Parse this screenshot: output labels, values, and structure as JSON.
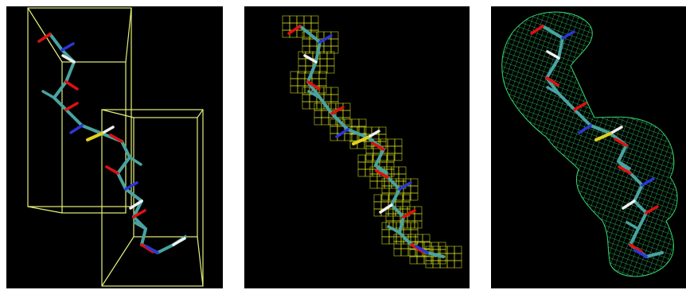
{
  "panels": [
    {
      "id": "bounding-boxes-view",
      "background": "#000000",
      "box_color": "#e6f07a"
    },
    {
      "id": "grid-voxels-view",
      "background": "#000000",
      "grid_color": "#e6f020"
    },
    {
      "id": "density-mesh-view",
      "background": "#000000",
      "mesh_color": "#3cf07a"
    }
  ],
  "atom_colors": {
    "carbon": "#4aa3a0",
    "oxygen": "#e01010",
    "nitrogen": "#2a36d8",
    "hydrogen": "#f0f0f0",
    "sulfur": "#e0d020"
  }
}
